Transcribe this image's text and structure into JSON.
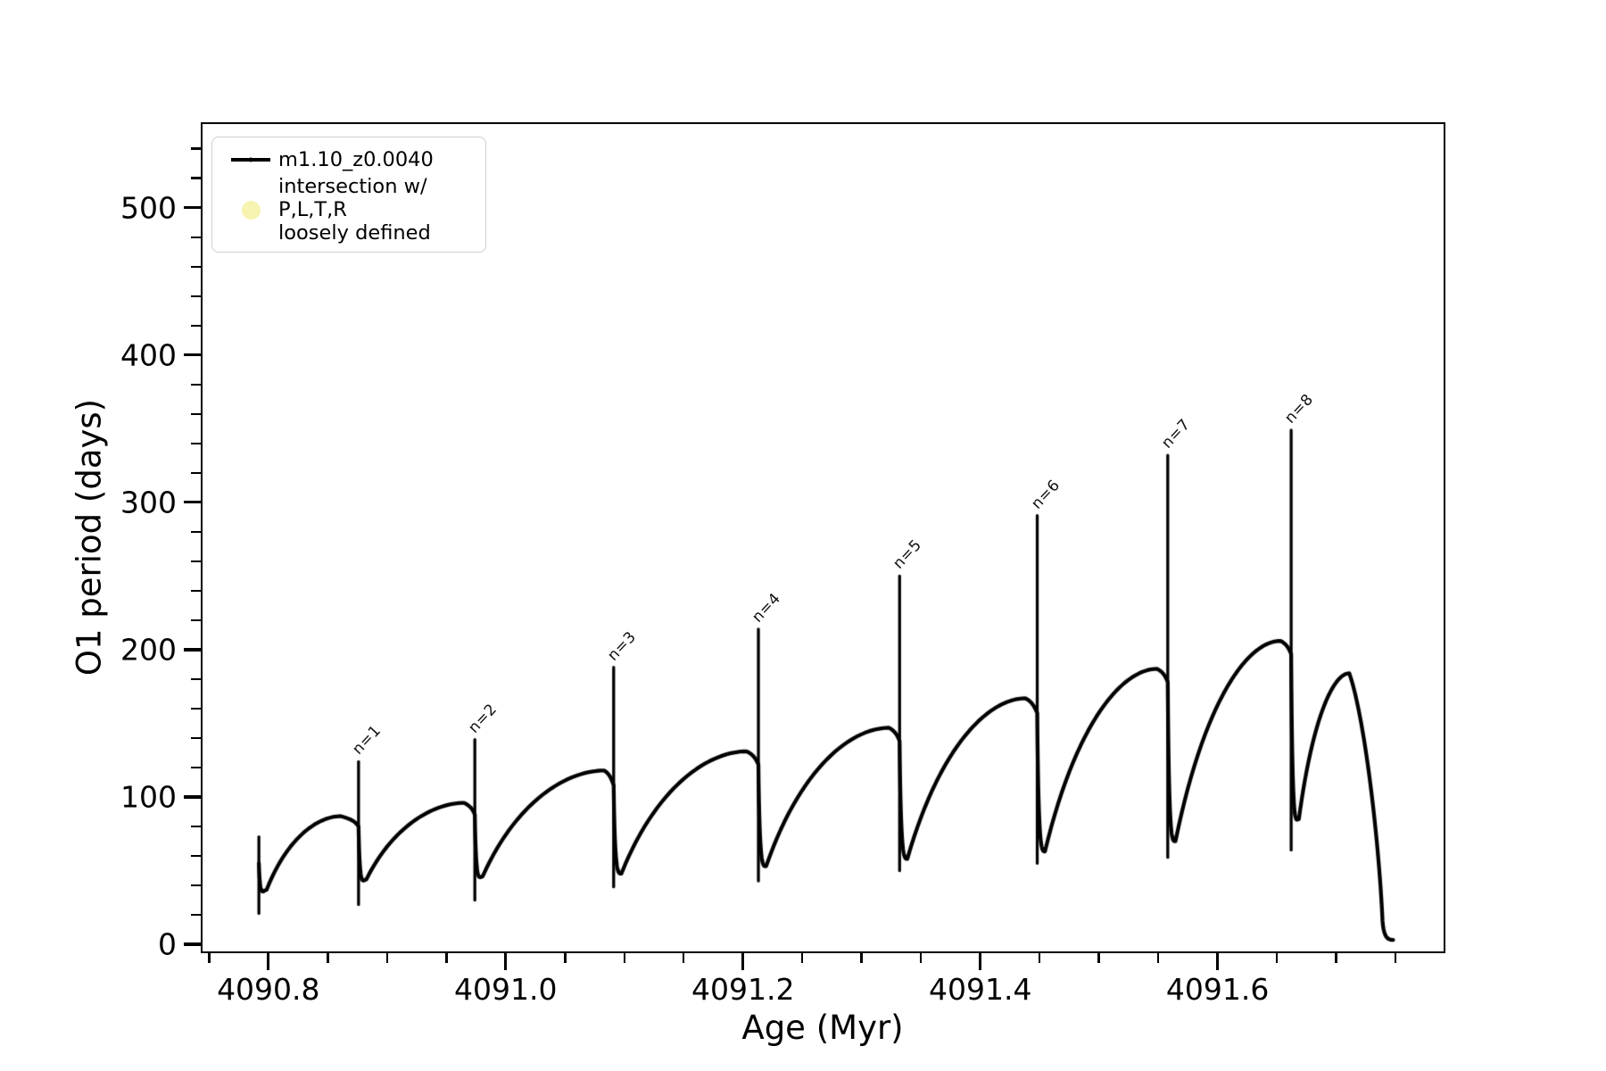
{
  "figure": {
    "background": "#ffffff",
    "line_color": "#000000",
    "intersection_marker_color": "#f7f3b0"
  },
  "legend": {
    "position": "upper left",
    "entries": [
      {
        "marker": "line-with-dot",
        "label": "m1.10_z0.0040"
      },
      {
        "marker": "pale-yellow-circle",
        "label_line1": "intersection w/ P,L,T,R",
        "label_line2": "loosely defined"
      }
    ]
  },
  "chart_data": {
    "type": "line",
    "title": "",
    "xlabel": "Age (Myr)",
    "ylabel": "O1 period (days)",
    "xlim": [
      4090.743,
      4091.792
    ],
    "ylim": [
      -6,
      558
    ],
    "grid": false,
    "x_axis": {
      "major_tick_values": [
        4090.8,
        4091.0,
        4091.2,
        4091.4,
        4091.6
      ],
      "major_tick_labels": [
        "4090.8",
        "4091.0",
        "4091.2",
        "4091.4",
        "4091.6"
      ],
      "minor_tick_start": 4090.75,
      "minor_tick_step": 0.05,
      "minor_tick_end": 4091.75
    },
    "y_axis": {
      "major_tick_values": [
        0,
        100,
        200,
        300,
        400,
        500
      ],
      "major_tick_labels": [
        "0",
        "100",
        "200",
        "300",
        "400",
        "500"
      ],
      "minor_tick_start": 20,
      "minor_tick_step": 20,
      "minor_tick_end": 540
    },
    "series_name": "m1.10_z0.0040",
    "description": "O1 pulsation period vs age; sawtooth cycles with narrow vertical spikes at thermal pulses labeled n=1..n=8",
    "spikes": [
      {
        "label": "",
        "age": 4090.792,
        "top": 73,
        "bottom": 21,
        "dip_in": 55,
        "min_after": 37
      },
      {
        "label": "n=1",
        "age": 4090.876,
        "top": 124,
        "bottom": 27,
        "dip_in": 80,
        "min_after": 44
      },
      {
        "label": "n=2",
        "age": 4090.974,
        "top": 139,
        "bottom": 30,
        "dip_in": 88,
        "min_after": 46
      },
      {
        "label": "n=3",
        "age": 4091.091,
        "top": 188,
        "bottom": 39,
        "dip_in": 108,
        "min_after": 48
      },
      {
        "label": "n=4",
        "age": 4091.213,
        "top": 214,
        "bottom": 43,
        "dip_in": 122,
        "min_after": 53
      },
      {
        "label": "n=5",
        "age": 4091.332,
        "top": 250,
        "bottom": 50,
        "dip_in": 138,
        "min_after": 58
      },
      {
        "label": "n=6",
        "age": 4091.448,
        "top": 291,
        "bottom": 55,
        "dip_in": 157,
        "min_after": 63
      },
      {
        "label": "n=7",
        "age": 4091.558,
        "top": 332,
        "bottom": 59,
        "dip_in": 178,
        "min_after": 70
      },
      {
        "label": "n=8",
        "age": 4091.662,
        "top": 349,
        "bottom": 64,
        "dip_in": 197,
        "min_after": 85
      }
    ],
    "humps": [
      {
        "age": 4090.861,
        "value": 87
      },
      {
        "age": 4090.965,
        "value": 96
      },
      {
        "age": 4091.083,
        "value": 118
      },
      {
        "age": 4091.203,
        "value": 131
      },
      {
        "age": 4091.323,
        "value": 147
      },
      {
        "age": 4091.438,
        "value": 167
      },
      {
        "age": 4091.549,
        "value": 187
      },
      {
        "age": 4091.653,
        "value": 206
      }
    ],
    "tail": {
      "hump_age": 4091.711,
      "hump_value": 184,
      "end_age": 4091.748,
      "end_value": 3
    },
    "legend_position": "upper left"
  }
}
